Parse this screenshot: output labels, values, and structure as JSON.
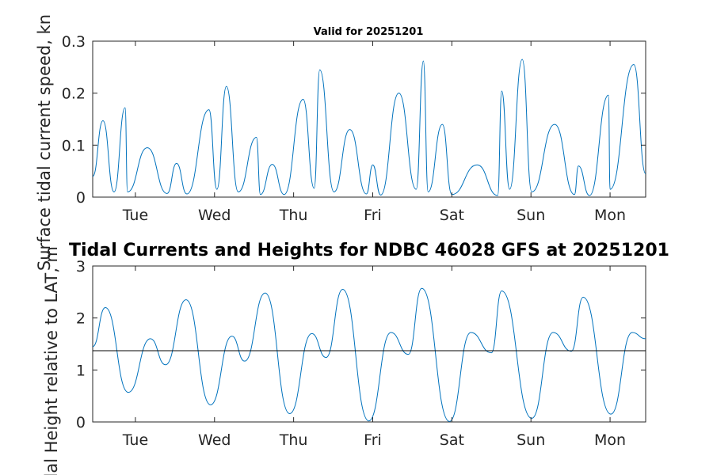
{
  "chart_data": [
    {
      "type": "line",
      "title": "Valid for 20251201",
      "ylabel": "Surface tidal current speed, kn",
      "xlabel": "",
      "categories": [
        "Tue",
        "Wed",
        "Thu",
        "Fri",
        "Sat",
        "Sun",
        "Mon"
      ],
      "category_days": [
        1,
        2,
        3,
        4,
        5,
        6,
        7
      ],
      "xlim": [
        0.46,
        7.45
      ],
      "ylim": [
        0,
        0.3
      ],
      "yticks": [
        0,
        0.1,
        0.2,
        0.3
      ],
      "ytick_labels": [
        "0",
        "0.1",
        "0.2",
        "0.3"
      ],
      "grid": false,
      "color": "#0072bd",
      "series": [
        {
          "values_description_free": true,
          "x": [
            0.46,
            0.59,
            0.73,
            0.87,
            0.9,
            1.15,
            1.4,
            1.52,
            1.65,
            1.93,
            2.03,
            2.15,
            2.3,
            2.53,
            2.58,
            2.73,
            2.88,
            3.12,
            3.26,
            3.33,
            3.51,
            3.71,
            3.92,
            4.0,
            4.1,
            4.33,
            4.55,
            4.64,
            4.7,
            4.88,
            5.0,
            5.32,
            5.58,
            5.63,
            5.73,
            5.89,
            6.01,
            6.3,
            6.55,
            6.6,
            6.74,
            6.98,
            7.0,
            7.3,
            7.45
          ],
          "values": [
            0.04,
            0.147,
            0.01,
            0.172,
            0.01,
            0.095,
            0.007,
            0.065,
            0.006,
            0.168,
            0.015,
            0.213,
            0.01,
            0.115,
            0.005,
            0.063,
            0.005,
            0.188,
            0.017,
            0.245,
            0.01,
            0.13,
            0.006,
            0.062,
            0.004,
            0.2,
            0.015,
            0.262,
            0.01,
            0.14,
            0.005,
            0.062,
            0.003,
            0.204,
            0.015,
            0.265,
            0.01,
            0.14,
            0.005,
            0.06,
            0.003,
            0.196,
            0.015,
            0.255,
            0.045
          ]
        }
      ]
    },
    {
      "type": "line",
      "title": "Tidal Currents and Heights for NDBC 46028 GFS at 20251201",
      "ylabel": "Tidal Height relative to LAT, m",
      "xlabel": "",
      "categories": [
        "Tue",
        "Wed",
        "Thu",
        "Fri",
        "Sat",
        "Sun",
        "Mon"
      ],
      "category_days": [
        1,
        2,
        3,
        4,
        5,
        6,
        7
      ],
      "xlim": [
        0.46,
        7.45
      ],
      "ylim": [
        0,
        3
      ],
      "yticks": [
        0,
        1,
        2,
        3
      ],
      "ytick_labels": [
        "0",
        "1",
        "2",
        "3"
      ],
      "grid": false,
      "color": "#0072bd",
      "reference_line": 1.37,
      "series": [
        {
          "x": [
            0.46,
            0.62,
            0.91,
            1.19,
            1.38,
            1.64,
            1.95,
            2.22,
            2.38,
            2.64,
            2.95,
            3.23,
            3.41,
            3.62,
            3.95,
            4.23,
            4.45,
            4.62,
            4.97,
            5.24,
            5.5,
            5.63,
            6.01,
            6.28,
            6.51,
            6.66,
            7.01,
            7.28,
            7.45
          ],
          "values": [
            1.45,
            2.2,
            0.57,
            1.6,
            1.1,
            2.35,
            0.33,
            1.65,
            1.17,
            2.48,
            0.16,
            1.7,
            1.24,
            2.55,
            0.02,
            1.72,
            1.3,
            2.57,
            0.01,
            1.72,
            1.33,
            2.52,
            0.07,
            1.72,
            1.36,
            2.4,
            0.15,
            1.72,
            1.6
          ]
        }
      ]
    }
  ]
}
